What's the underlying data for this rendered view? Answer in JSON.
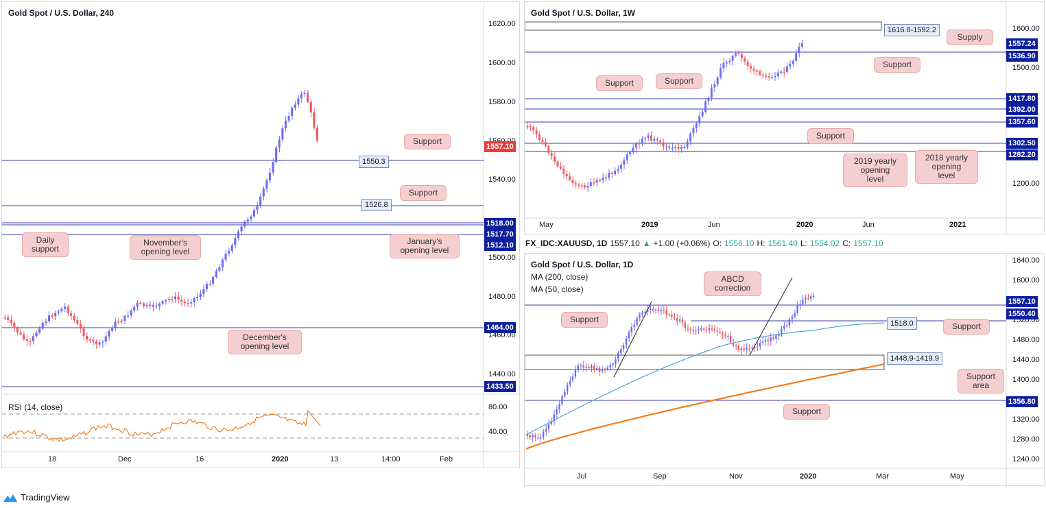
{
  "colors": {
    "level_line": "#3a3aa8",
    "bull": "#6c6cf5",
    "bear": "#ef5a60",
    "axis_tag_blue": "#0d1f9e",
    "axis_tag_red": "#ef3b3b",
    "ma50": "#47a6d6",
    "ma200": "#f57c1c",
    "rsi": "#f57c1c",
    "callout_bg": "#f5cfcf"
  },
  "left": {
    "title": "Gold Spot / U.S. Dollar, 240",
    "price_ticks": [
      "1620.00",
      "1600.00",
      "1580.00",
      "1560.00",
      "1540.00",
      "1520.00",
      "1500.00",
      "1480.00",
      "1460.00",
      "1440.00"
    ],
    "axis_tags": [
      {
        "label": "1557.10",
        "color": "red"
      },
      {
        "label": "1518.00",
        "color": "blue"
      },
      {
        "label": "1517.70",
        "color": "blue"
      },
      {
        "label": "1512.10",
        "color": "blue"
      },
      {
        "label": "1464.00",
        "color": "blue"
      },
      {
        "label": "1433.50",
        "color": "blue"
      }
    ],
    "level_boxes": [
      "1550.3",
      "1526.8"
    ],
    "callouts": [
      "Support",
      "Support",
      "Daily\nsupport",
      "November's\nopening level",
      "January's\nopening level",
      "December's\nopening level"
    ],
    "time_ticks": [
      "18",
      "Dec",
      "16",
      "2020",
      "13",
      "14:00",
      "Feb"
    ],
    "rsi": {
      "label": "RSI (14, close)",
      "ticks": [
        "80.00",
        "40.00"
      ]
    }
  },
  "weekly": {
    "title": "Gold Spot / U.S. Dollar, 1W",
    "price_ticks": [
      "1600.00",
      "1500.00",
      "1200.00"
    ],
    "axis_tags": [
      "1557.24",
      "1536.90",
      "1417.80",
      "1392.00",
      "1357.60",
      "1302.50",
      "1282.20"
    ],
    "zone_box": "1616.8-1592.2",
    "callouts": [
      "Supply",
      "Support",
      "Support",
      "Support",
      "Support",
      "2019 yearly\nopening\nlevel",
      "2018 yearly\nopening\nlevel"
    ],
    "time_ticks": [
      "May",
      "2019",
      "Jun",
      "2020",
      "Jun",
      "2021"
    ]
  },
  "ticker": {
    "symbol": "FX_IDC:XAUUSD, 1D",
    "last": "1557.10",
    "arrow": "▲",
    "change": "+1.00 (+0.06%)",
    "o_k": "O:",
    "o_v": "1556.10",
    "h_k": "H:",
    "h_v": "1561.40",
    "l_k": "L:",
    "l_v": "1554.02",
    "c_k": "C:",
    "c_v": "1557.10"
  },
  "daily": {
    "title": "Gold Spot / U.S. Dollar, 1D",
    "ma200_label": "MA (200, close)",
    "ma50_label": "MA (50, close)",
    "price_ticks": [
      "1640.00",
      "1600.00",
      "1520.00",
      "1480.00",
      "1440.00",
      "1400.00",
      "1360.00",
      "1320.00",
      "1280.00",
      "1240.00"
    ],
    "axis_tags": [
      "1557.10",
      "1550.40",
      "1356.80"
    ],
    "level_boxes": [
      "1518.0",
      "1448.9-1419.9"
    ],
    "callouts": [
      "ABCD\ncorrection",
      "Support",
      "Support",
      "Support\narea",
      "Support"
    ],
    "time_ticks": [
      "Jul",
      "Sep",
      "Nov",
      "2020",
      "Mar",
      "May"
    ]
  },
  "brand": "TradingView"
}
